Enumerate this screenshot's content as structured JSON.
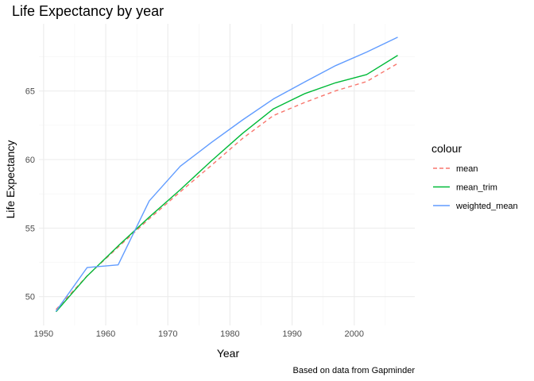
{
  "chart_data": {
    "type": "line",
    "title": "Life Expectancy by year",
    "xlabel": "Year",
    "ylabel": "Life Expectancy",
    "caption": "Based on data from Gapminder",
    "x": [
      1952,
      1957,
      1962,
      1967,
      1972,
      1977,
      1982,
      1987,
      1992,
      1997,
      2002,
      2007
    ],
    "xlim": [
      1952,
      2007
    ],
    "ylim": [
      48.9,
      68.9
    ],
    "xticks": [
      1950,
      1960,
      1970,
      1980,
      1990,
      2000
    ],
    "yticks": [
      50,
      55,
      60,
      65
    ],
    "grid": true,
    "legend": {
      "title": "colour",
      "placement": "right"
    },
    "series": [
      {
        "name": "mean",
        "color": "#F8766D",
        "dash": "dashed",
        "values": [
          49.06,
          51.51,
          53.61,
          55.68,
          57.65,
          59.57,
          61.53,
          63.21,
          64.16,
          65.01,
          65.69,
          67.01
        ]
      },
      {
        "name": "mean_trim",
        "color": "#00BA38",
        "dash": "solid",
        "values": [
          48.9,
          51.5,
          53.7,
          55.8,
          57.8,
          59.9,
          61.9,
          63.7,
          64.8,
          65.6,
          66.2,
          67.6
        ]
      },
      {
        "name": "weighted_mean",
        "color": "#619CFF",
        "dash": "solid",
        "values": [
          48.94,
          52.12,
          52.32,
          56.98,
          59.51,
          61.24,
          62.88,
          64.42,
          65.65,
          66.85,
          67.84,
          68.92
        ]
      }
    ]
  }
}
